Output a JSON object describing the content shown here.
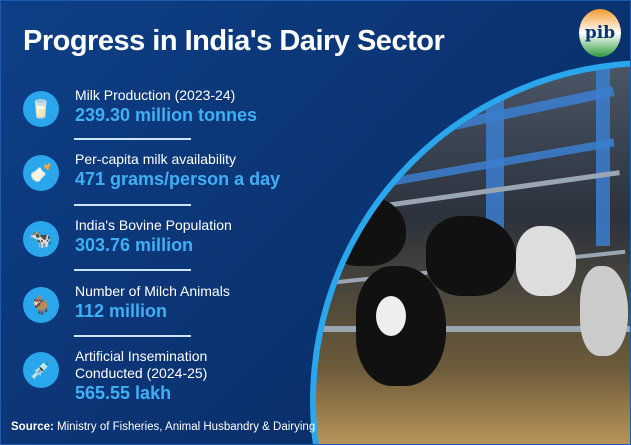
{
  "title": "Progress in India's Dairy Sector",
  "logo": {
    "text": "pib",
    "icon": "pib-logo"
  },
  "items": [
    {
      "icon": "milk-bottles-icon",
      "label": "Milk Production (2023-24)",
      "value": "239.30 million tonnes"
    },
    {
      "icon": "milk-bottle-glass-icon",
      "label": "Per-capita milk availability",
      "value": "471 grams/person a day"
    },
    {
      "icon": "cow-icon",
      "label": "India's Bovine Population",
      "value": "303.76 million"
    },
    {
      "icon": "milch-animals-icon",
      "label": "Number of Milch Animals",
      "value": "112 million"
    },
    {
      "icon": "syringe-icon",
      "label": "Artificial Insemination",
      "label2": "Conducted (2024-25)",
      "value": "565.55 lakh"
    }
  ],
  "source": {
    "prefix": "Source:",
    "text": " Ministry of Fisheries, Animal Husbandry & Dairying"
  },
  "colors": {
    "background": "#0b3474",
    "accent": "#2aa6ec",
    "value": "#3fb0f5"
  }
}
